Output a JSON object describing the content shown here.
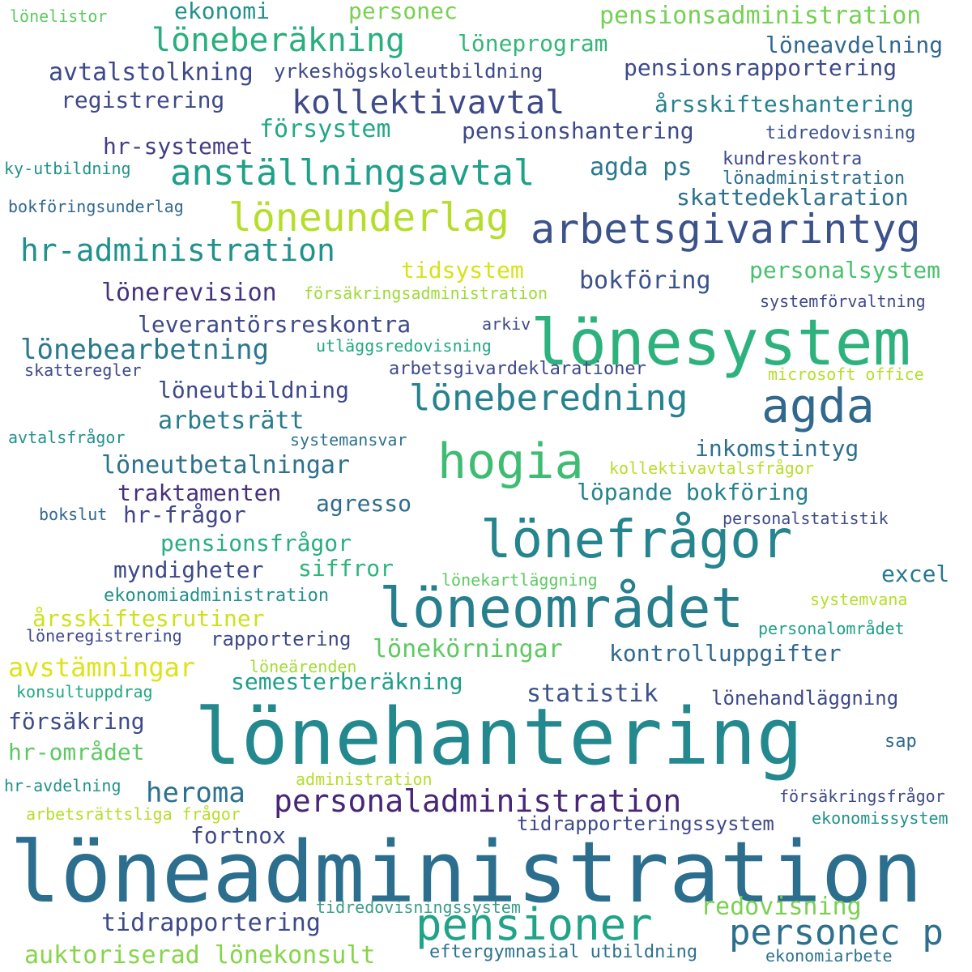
{
  "words": [
    {
      "text": "löneadministration",
      "color": "#2c6e8e"
    },
    {
      "text": "lönehantering",
      "color": "#23898e"
    },
    {
      "text": "lönesystem",
      "color": "#2db27d"
    },
    {
      "text": "hogia",
      "color": "#3fbc73"
    },
    {
      "text": "löneområdet",
      "color": "#277f8e"
    },
    {
      "text": "lönefrågor",
      "color": "#25858e"
    },
    {
      "text": "arbetsgivarintyg",
      "color": "#3b528b"
    },
    {
      "text": "agda",
      "color": "#31688e"
    },
    {
      "text": "löneunderlag",
      "color": "#b5de2b"
    },
    {
      "text": "pensioner",
      "color": "#20a386"
    },
    {
      "text": "anställningsavtal",
      "color": "#1fa088"
    },
    {
      "text": "personec p",
      "color": "#2d708e"
    },
    {
      "text": "löneberedning",
      "color": "#26828e"
    },
    {
      "text": "kollektivavtal",
      "color": "#3e4a89"
    },
    {
      "text": "löneberäkning",
      "color": "#29af7f"
    },
    {
      "text": "personaladministration",
      "color": "#482677"
    },
    {
      "text": "hr-administration",
      "color": "#21918c"
    },
    {
      "text": "lönebearbetning",
      "color": "#2a788e"
    },
    {
      "text": "avtalstolkning",
      "color": "#3e4989"
    },
    {
      "text": "lönekörningar",
      "color": "#5ec962"
    },
    {
      "text": "löneutbetalningar",
      "color": "#2c728e"
    },
    {
      "text": "statistik",
      "color": "#3b528b"
    },
    {
      "text": "avstämningar",
      "color": "#dde318"
    },
    {
      "text": "heroma",
      "color": "#2c728e"
    },
    {
      "text": "auktoriserad lönekonsult",
      "color": "#86d549"
    },
    {
      "text": "tidrapportering",
      "color": "#3e4989"
    },
    {
      "text": "kontrolluppgifter",
      "color": "#31688e"
    },
    {
      "text": "semesterberäkning",
      "color": "#1f9e89"
    },
    {
      "text": "lönerevision",
      "color": "#46337e"
    },
    {
      "text": "bokföring",
      "color": "#3b528b"
    },
    {
      "text": "pensionsadministration",
      "color": "#75d054"
    },
    {
      "text": "arbetsrätt",
      "color": "#297b8e"
    },
    {
      "text": "pensionsrapportering",
      "color": "#3e4a89"
    },
    {
      "text": "skattedeklaration",
      "color": "#2d718e"
    },
    {
      "text": "personalsystem",
      "color": "#4ac16d"
    },
    {
      "text": "försystem",
      "color": "#22a884"
    },
    {
      "text": "hr-systemet",
      "color": "#433e85"
    },
    {
      "text": "registrering",
      "color": "#3e4a89"
    },
    {
      "text": "pensionshantering",
      "color": "#3e4989"
    },
    {
      "text": "årsskifteshantering",
      "color": "#26828e"
    },
    {
      "text": "agda ps",
      "color": "#2a788e"
    },
    {
      "text": "löneprogram",
      "color": "#34b679"
    },
    {
      "text": "löneavdelning",
      "color": "#31688e"
    },
    {
      "text": "ekonomi",
      "color": "#21918c"
    },
    {
      "text": "personec",
      "color": "#7ad151"
    },
    {
      "text": "tidsystem",
      "color": "#d8e219"
    },
    {
      "text": "leverantörsreskontra",
      "color": "#3e4a89"
    },
    {
      "text": "löneutbildning",
      "color": "#3e4a89"
    },
    {
      "text": "inkomstintyg",
      "color": "#2d708e"
    },
    {
      "text": "löpande bokföring",
      "color": "#25838e"
    },
    {
      "text": "traktamenten",
      "color": "#472f7d"
    },
    {
      "text": "hr-frågor",
      "color": "#414487"
    },
    {
      "text": "agresso",
      "color": "#2f6c8e"
    },
    {
      "text": "pensionsfrågor",
      "color": "#28ae80"
    },
    {
      "text": "myndigheter",
      "color": "#3e4989"
    },
    {
      "text": "siffror",
      "color": "#2fb47c"
    },
    {
      "text": "excel",
      "color": "#2a788e"
    },
    {
      "text": "årsskiftesrutiner",
      "color": "#cde11d"
    },
    {
      "text": "rapportering",
      "color": "#3e4a89"
    },
    {
      "text": "försäkring",
      "color": "#3e4a89"
    },
    {
      "text": "hr-området",
      "color": "#5ec962"
    },
    {
      "text": "fortnox",
      "color": "#3e4a89"
    },
    {
      "text": "redovisning",
      "color": "#7ad151"
    },
    {
      "text": "tidrapporteringssystem",
      "color": "#3e4989"
    },
    {
      "text": "eftergymnasial utbildning",
      "color": "#2c728e"
    },
    {
      "text": "ekonomiadministration",
      "color": "#21918c"
    },
    {
      "text": "yrkeshögskoleutbildning",
      "color": "#3e4a89"
    },
    {
      "text": "tidredovisning",
      "color": "#3b528b"
    },
    {
      "text": "kundreskontra",
      "color": "#3e4a89"
    },
    {
      "text": "lönadministration",
      "color": "#2d708e"
    },
    {
      "text": "systemförvaltning",
      "color": "#3e4a89"
    },
    {
      "text": "försäkringsadministration",
      "color": "#a0da39"
    },
    {
      "text": "arkiv",
      "color": "#3e4989"
    },
    {
      "text": "utläggsredovisning",
      "color": "#22a884"
    },
    {
      "text": "arbetsgivardeklarationer",
      "color": "#3e4a89"
    },
    {
      "text": "microsoft office",
      "color": "#b5de2b"
    },
    {
      "text": "skatteregler",
      "color": "#3e4a89"
    },
    {
      "text": "avtalsfrågor",
      "color": "#21918c"
    },
    {
      "text": "systemansvar",
      "color": "#2c728e"
    },
    {
      "text": "kollektivavtalsfrågor",
      "color": "#b5de2b"
    },
    {
      "text": "bokslut",
      "color": "#31688e"
    },
    {
      "text": "personalstatistik",
      "color": "#3e4a89"
    },
    {
      "text": "lönekartläggning",
      "color": "#5ec962"
    },
    {
      "text": "systemvana",
      "color": "#b5de2b"
    },
    {
      "text": "personalområdet",
      "color": "#1f9e89"
    },
    {
      "text": "löneregistrering",
      "color": "#3e4989"
    },
    {
      "text": "löneärenden",
      "color": "#a5db36"
    },
    {
      "text": "konsultuppdrag",
      "color": "#22a884"
    },
    {
      "text": "lönehandläggning",
      "color": "#3e4a89"
    },
    {
      "text": "sap",
      "color": "#31688e"
    },
    {
      "text": "hr-avdelning",
      "color": "#21918c"
    },
    {
      "text": "administration",
      "color": "#b5de2b"
    },
    {
      "text": "försäkringsfrågor",
      "color": "#3e4a89"
    },
    {
      "text": "arbetsrättsliga frågor",
      "color": "#b5de2b"
    },
    {
      "text": "ekonomissystem",
      "color": "#21918c"
    },
    {
      "text": "tidredovisningssystem",
      "color": "#3b9c89"
    },
    {
      "text": "ekonomiarbete",
      "color": "#2c728e"
    },
    {
      "text": "lönelistor",
      "color": "#5ec962"
    },
    {
      "text": "ky-utbildning",
      "color": "#21918c"
    },
    {
      "text": "bokföringsunderlag",
      "color": "#31688e"
    }
  ]
}
